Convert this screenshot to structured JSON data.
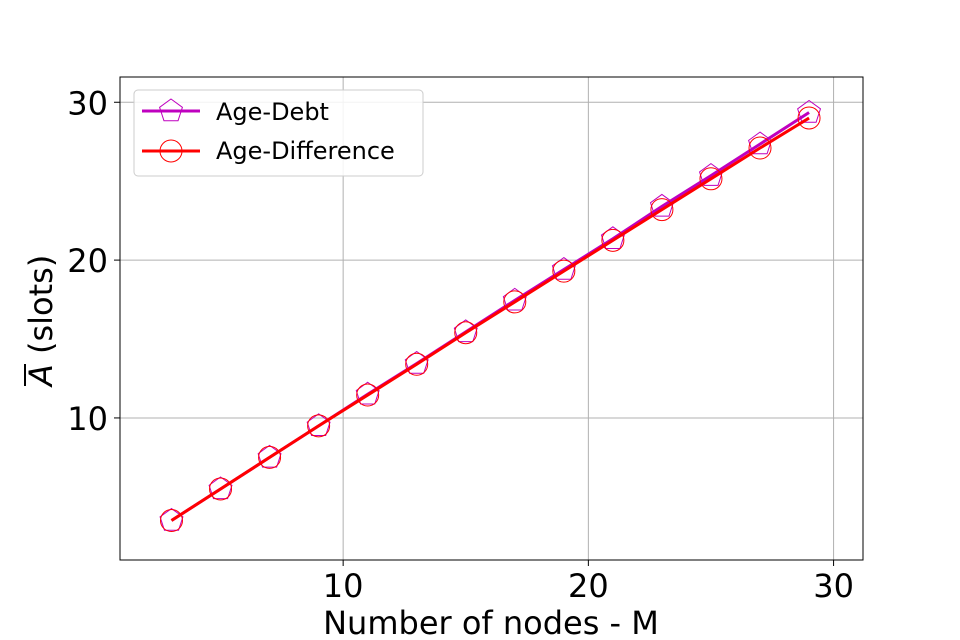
{
  "chart_data": {
    "type": "line",
    "xlabel": "Number of nodes - M",
    "ylabel": "(slots)",
    "ylabel_symbol": "A",
    "xlim": [
      0.9,
      31.2
    ],
    "ylim": [
      1.0,
      31.6
    ],
    "xticks": [
      10,
      20,
      30
    ],
    "yticks": [
      10,
      20,
      30
    ],
    "grid": true,
    "legend_position": "top-left",
    "x": [
      3,
      5,
      7,
      9,
      11,
      13,
      15,
      17,
      19,
      21,
      23,
      25,
      27,
      29
    ],
    "series": [
      {
        "name": "Age-Debt",
        "color": "#bf00bf",
        "marker": "pentagon",
        "values": [
          3.5,
          5.5,
          7.5,
          9.5,
          11.5,
          13.45,
          15.45,
          17.45,
          19.4,
          21.35,
          23.4,
          25.35,
          27.35,
          29.35
        ]
      },
      {
        "name": "Age-Difference",
        "color": "#ff0000",
        "marker": "circle",
        "values": [
          3.5,
          5.5,
          7.5,
          9.5,
          11.45,
          13.4,
          15.4,
          17.35,
          19.3,
          21.25,
          23.2,
          25.15,
          27.1,
          29.0
        ]
      }
    ]
  }
}
